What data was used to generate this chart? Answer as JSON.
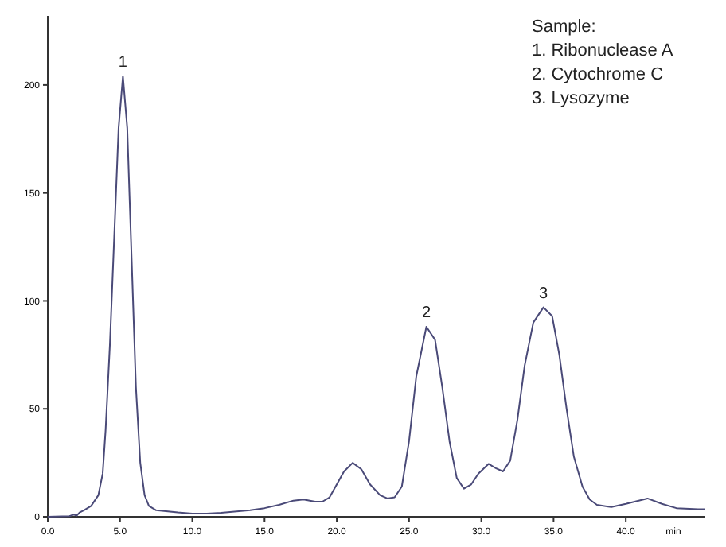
{
  "chart_data": {
    "type": "line",
    "xlabel": "min",
    "xlim": [
      0,
      45.5
    ],
    "ylim": [
      0,
      232
    ],
    "xticks": [
      {
        "value": 0,
        "label": "0.0"
      },
      {
        "value": 5,
        "label": "5.0"
      },
      {
        "value": 10,
        "label": "10.0"
      },
      {
        "value": 15,
        "label": "15.0"
      },
      {
        "value": 20,
        "label": "20.0"
      },
      {
        "value": 25,
        "label": "25.0"
      },
      {
        "value": 30,
        "label": "30.0"
      },
      {
        "value": 35,
        "label": "35.0"
      },
      {
        "value": 40,
        "label": "40.0"
      }
    ],
    "yticks": [
      0,
      50,
      100,
      150,
      200
    ],
    "series": [
      {
        "color": "#4a4a78",
        "x": [
          0,
          1.5,
          1.8,
          2.0,
          2.2,
          2.5,
          3.0,
          3.5,
          3.8,
          4.0,
          4.3,
          4.6,
          4.9,
          5.2,
          5.5,
          5.8,
          6.1,
          6.4,
          6.7,
          7.0,
          7.5,
          9,
          10,
          11,
          12,
          14,
          15,
          16,
          17,
          17.7,
          18.5,
          19,
          19.5,
          20,
          20.5,
          21.1,
          21.7,
          22.3,
          23,
          23.5,
          24,
          24.5,
          25,
          25.5,
          26.2,
          26.8,
          27.3,
          27.8,
          28.3,
          28.8,
          29.3,
          29.8,
          30.5,
          31,
          31.5,
          32,
          32.5,
          33,
          33.6,
          34.3,
          34.9,
          35.4,
          35.9,
          36.4,
          37,
          37.5,
          38,
          39,
          40,
          41.5,
          42.5,
          43.5,
          45,
          45.5
        ],
        "values": [
          0,
          0.3,
          1,
          0.5,
          2,
          3,
          5,
          10,
          20,
          40,
          80,
          130,
          180,
          204,
          180,
          120,
          60,
          25,
          10,
          5,
          3,
          2,
          1.5,
          1.5,
          1.8,
          3,
          4,
          5.5,
          7.5,
          8,
          7,
          7,
          9,
          15,
          21,
          25,
          22,
          15,
          10,
          8.5,
          9,
          14,
          35,
          65,
          88,
          82,
          60,
          35,
          18,
          13,
          15,
          20,
          24.5,
          22.5,
          21,
          26,
          45,
          70,
          90,
          97,
          93,
          75,
          50,
          28,
          14,
          8,
          5.5,
          4.5,
          6,
          8.5,
          6,
          4,
          3.5,
          3.5
        ]
      }
    ],
    "annotations": [
      {
        "text": "1",
        "x": 5.2,
        "y": 204
      },
      {
        "text": "2",
        "x": 26.2,
        "y": 88
      },
      {
        "text": "3",
        "x": 34.3,
        "y": 97
      },
      "Sample:",
      "1. Ribonuclease A",
      "2. Cytochrome C",
      "3. Lysozyme"
    ],
    "marker": "none",
    "line_style": "solid"
  }
}
